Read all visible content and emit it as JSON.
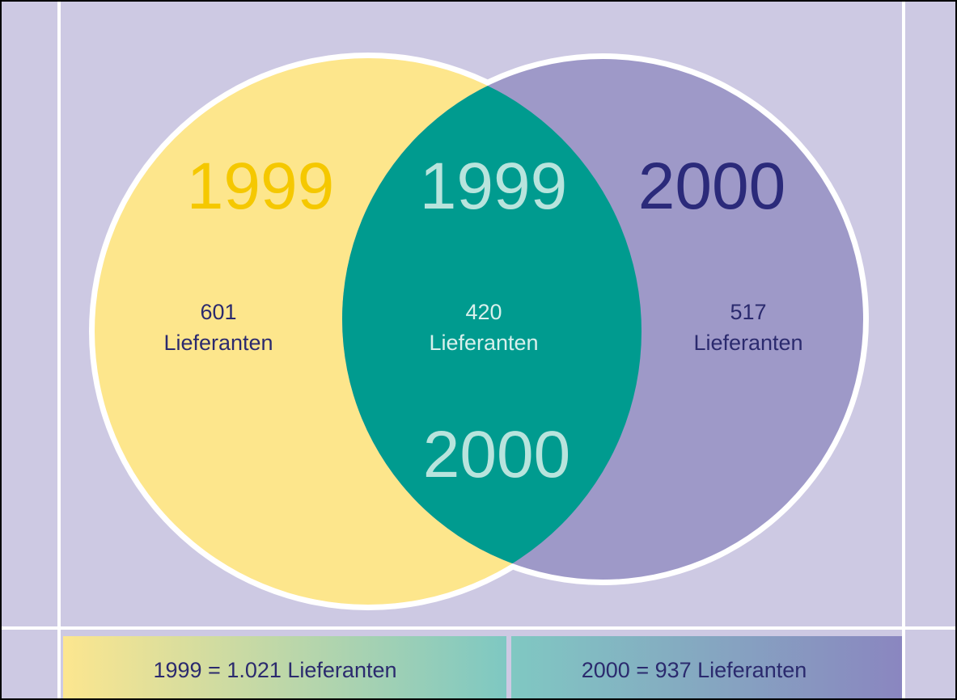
{
  "diagram": {
    "left": {
      "title": "1999",
      "count": "601",
      "unit": "Lieferanten"
    },
    "center": {
      "title_top": "1999",
      "title_bottom": "2000",
      "count": "420",
      "unit": "Lieferanten"
    },
    "right": {
      "title": "2000",
      "count": "517",
      "unit": "Lieferanten"
    },
    "legend": [
      "1999 = 1.021 Lieferanten",
      "2000 = 937 Lieferanten"
    ]
  }
}
